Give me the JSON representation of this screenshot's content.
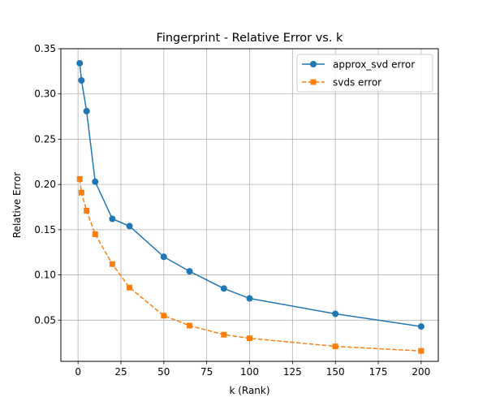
{
  "chart_data": {
    "type": "line",
    "title": "Fingerprint - Relative Error vs. k",
    "xlabel": "k (Rank)",
    "ylabel": "Relative Error",
    "xlim": [
      -10,
      210
    ],
    "ylim": [
      0.0045,
      0.35
    ],
    "xticks": [
      0,
      25,
      50,
      75,
      100,
      125,
      150,
      175,
      200
    ],
    "yticks": [
      0.05,
      0.1,
      0.15,
      0.2,
      0.25,
      0.3,
      0.35
    ],
    "ytick_labels": [
      "0.05",
      "0.10",
      "0.15",
      "0.20",
      "0.25",
      "0.30",
      "0.35"
    ],
    "grid": true,
    "legend_position": "top-right",
    "x": [
      1,
      2,
      5,
      10,
      20,
      30,
      50,
      65,
      85,
      100,
      150,
      200
    ],
    "series": [
      {
        "name": "approx_svd error",
        "color": "#1f77b4",
        "line_style": "solid",
        "marker": "circle",
        "values": [
          0.334,
          0.315,
          0.281,
          0.203,
          0.162,
          0.154,
          0.12,
          0.104,
          0.085,
          0.074,
          0.057,
          0.043
        ]
      },
      {
        "name": "svds error",
        "color": "#ff7f0e",
        "line_style": "dashed",
        "marker": "square",
        "values": [
          0.206,
          0.191,
          0.171,
          0.145,
          0.112,
          0.086,
          0.055,
          0.044,
          0.034,
          0.03,
          0.021,
          0.016
        ]
      }
    ]
  }
}
